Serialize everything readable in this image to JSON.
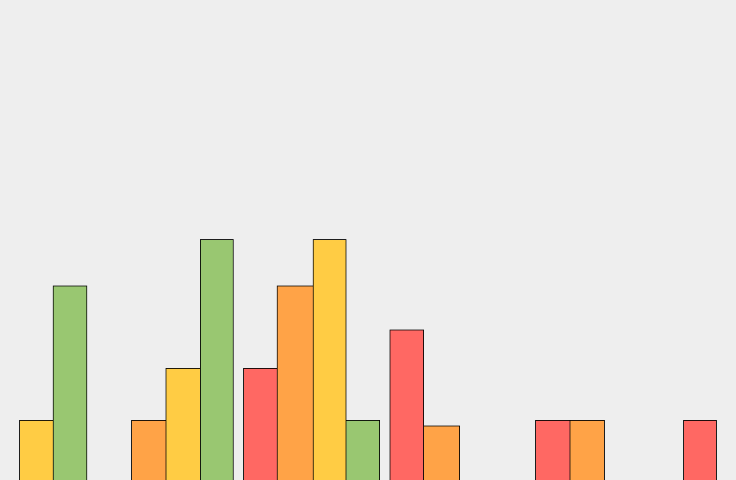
{
  "chart_data": {
    "type": "bar",
    "bars": [
      {
        "value": 75,
        "color": "#ffcc44"
      },
      {
        "value": 243,
        "color": "#99c771"
      },
      {
        "value": 75,
        "color": "#ffa347"
      },
      {
        "value": 140,
        "color": "#ffcc44"
      },
      {
        "value": 301,
        "color": "#99c771"
      },
      {
        "value": 140,
        "color": "#ff6863"
      },
      {
        "value": 243,
        "color": "#ffa347"
      },
      {
        "value": 301,
        "color": "#ffcc44"
      },
      {
        "value": 75,
        "color": "#99c771"
      },
      {
        "value": 188,
        "color": "#ff6863"
      },
      {
        "value": 68,
        "color": "#ffa347"
      },
      {
        "value": 75,
        "color": "#ff6863"
      },
      {
        "value": 75,
        "color": "#ffa347"
      },
      {
        "value": 75,
        "color": "#ff6863"
      }
    ],
    "ylim": [
      0,
      600
    ],
    "grid": false,
    "background": "#eeeeee",
    "bar_outline_color": "#000000"
  }
}
